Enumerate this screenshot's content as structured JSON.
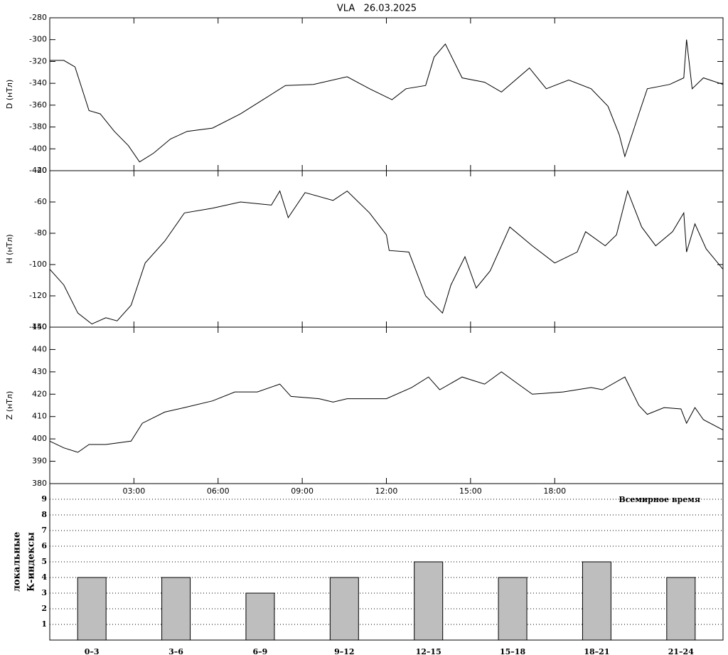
{
  "chart_data": [
    {
      "type": "line",
      "title": "VLA   26.03.2025",
      "ylabel": "D (нТл)",
      "color": "#000000",
      "x": [
        0,
        0.5,
        0.9,
        1.4,
        1.8,
        2.3,
        2.8,
        3.2,
        3.7,
        4.3,
        4.9,
        5.8,
        6.8,
        7.6,
        8.4,
        9.4,
        10.6,
        11.4,
        12.2,
        12.7,
        13.4,
        13.7,
        14.1,
        14.7,
        15.5,
        16.1,
        17.1,
        17.7,
        18.5,
        19.3,
        19.9,
        20.3,
        20.5,
        21.0,
        21.3,
        22.1,
        22.6,
        22.7,
        22.9,
        23.3,
        24
      ],
      "values": [
        -319,
        -319,
        -325,
        -365,
        -368,
        -384,
        -397,
        -412,
        -404,
        -391,
        -384,
        -381,
        -368,
        -355,
        -342,
        -341,
        -334,
        -345,
        -355,
        -345,
        -342,
        -316,
        -304,
        -335,
        -339,
        -348,
        -326,
        -345,
        -337,
        -345,
        -361,
        -387,
        -407,
        -368,
        -345,
        -341,
        -335,
        -300,
        -345,
        -335,
        -341
      ],
      "xlim": [
        0,
        24
      ],
      "ylim": [
        -420,
        -280
      ],
      "yticks": [
        -420,
        -400,
        -380,
        -360,
        -340,
        -320,
        -300,
        -280
      ]
    },
    {
      "type": "line",
      "ylabel": "H (нТл)",
      "color": "#000000",
      "x": [
        0,
        0.5,
        1.0,
        1.5,
        2.0,
        2.4,
        2.9,
        3.4,
        4.1,
        4.8,
        5.8,
        6.8,
        7.9,
        8.2,
        8.5,
        9.1,
        10.1,
        10.6,
        11.4,
        12.0,
        12.1,
        12.8,
        13.4,
        14.0,
        14.3,
        14.8,
        15.2,
        15.7,
        16.4,
        17.2,
        18.0,
        18.8,
        19.1,
        19.8,
        20.2,
        20.6,
        21.1,
        21.6,
        22.2,
        22.6,
        22.7,
        23.0,
        23.4,
        24
      ],
      "values": [
        -103,
        -113,
        -131,
        -138,
        -134,
        -136,
        -126,
        -99,
        -85,
        -67,
        -64,
        -60,
        -62,
        -53,
        -70,
        -54,
        -59,
        -53,
        -67,
        -81,
        -91,
        -92,
        -120,
        -131,
        -113,
        -95,
        -115,
        -104,
        -76,
        -88,
        -99,
        -92,
        -79,
        -88,
        -81,
        -53,
        -76,
        -88,
        -79,
        -67,
        -92,
        -74,
        -90,
        -103
      ],
      "xlim": [
        0,
        24
      ],
      "ylim": [
        -140,
        -40
      ],
      "yticks": [
        -140,
        -120,
        -100,
        -80,
        -60,
        -40
      ]
    },
    {
      "type": "line",
      "ylabel": "Z (нТл)",
      "xlabel": "Всемирное время",
      "color": "#000000",
      "x": [
        0,
        0.5,
        1.0,
        1.4,
        2.0,
        2.9,
        3.3,
        4.1,
        4.8,
        5.8,
        6.6,
        7.4,
        8.2,
        8.6,
        9.6,
        10.1,
        10.6,
        12.0,
        12.9,
        13.5,
        13.9,
        14.7,
        15.5,
        16.1,
        16.7,
        17.2,
        18.3,
        19.3,
        19.7,
        20.5,
        21.0,
        21.3,
        21.9,
        22.5,
        22.7,
        23.0,
        23.3,
        24
      ],
      "values": [
        399,
        396,
        394,
        397.5,
        397.5,
        399,
        407,
        412,
        414,
        417,
        421,
        421,
        424.5,
        419,
        418,
        416.5,
        418,
        418,
        423,
        427.7,
        422,
        427.7,
        424.5,
        430,
        424.5,
        420,
        421,
        423,
        422,
        427.7,
        415,
        411,
        414,
        413.4,
        407,
        414,
        408.6,
        404
      ],
      "xlim": [
        0,
        24
      ],
      "ylim": [
        380,
        450
      ],
      "yticks": [
        380,
        390,
        400,
        410,
        420,
        430,
        440,
        450
      ],
      "xticks": [
        {
          "value": 3,
          "label": "03:00"
        },
        {
          "value": 6,
          "label": "06:00"
        },
        {
          "value": 9,
          "label": "09:00"
        },
        {
          "value": 12,
          "label": "12:00"
        },
        {
          "value": 15,
          "label": "15:00"
        },
        {
          "value": 18,
          "label": "18:00"
        }
      ]
    },
    {
      "type": "bar",
      "ylabel": [
        "локальные",
        "К-индексы"
      ],
      "color": "#bebebe",
      "categories": [
        "0–3",
        "3–6",
        "6–9",
        "9–12",
        "12–15",
        "15–18",
        "18–21",
        "21–24"
      ],
      "values": [
        4,
        4,
        3,
        4,
        5,
        4,
        5,
        4
      ],
      "ylim": [
        0,
        10
      ],
      "yticks": [
        1,
        2,
        3,
        4,
        5,
        6,
        7,
        8,
        9
      ],
      "grid": true
    }
  ]
}
